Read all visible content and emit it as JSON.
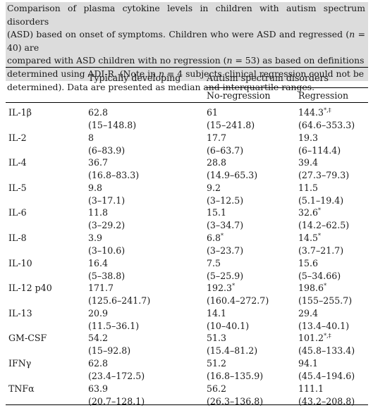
{
  "caption": {
    "line1": "Comparison of plasma cytokine levels in children with autism spectrum disorders",
    "line2": "(ASD) based on onset of symptoms. Children who were ASD and regressed (",
    "line2_var": "n",
    "line2_end": " = 40) are",
    "line3": "compared with ASD children with no regression (",
    "line3_var": "n",
    "line3_end": " = 53) as based on definitions",
    "line4a": "determined using ADI-R. (Note in ",
    "line4_var": "n",
    "line4b": " = 4 subjects clinical regression could not be",
    "line5": "determined). Data are presented as median and interquartile ranges."
  },
  "headers": {
    "typically_developing": "Typically developing",
    "asd": "Autism spectrum disorders",
    "no_regression": "No-regression",
    "regression": "Regression"
  },
  "rows": [
    {
      "label": "IL-1β",
      "td_med": "62.8",
      "td_iqr": "(15–148.8)",
      "nr_med": "61",
      "nr_sup": "",
      "nr_iqr": "(15–241.8)",
      "r_med": "144.3",
      "r_sup": "*,‡",
      "r_iqr": "(64.6–353.3)"
    },
    {
      "label": "IL-2",
      "td_med": "8",
      "td_iqr": "(6–83.9)",
      "nr_med": "17.7",
      "nr_sup": "",
      "nr_iqr": "(6–63.7)",
      "r_med": "19.3",
      "r_sup": "",
      "r_iqr": "(6–114.4)"
    },
    {
      "label": "IL-4",
      "td_med": "36.7",
      "td_iqr": "(16.8–83.3)",
      "nr_med": "28.8",
      "nr_sup": "",
      "nr_iqr": "(14.9–65.3)",
      "r_med": "39.4",
      "r_sup": "",
      "r_iqr": "(27.3–79.3)"
    },
    {
      "label": "IL-5",
      "td_med": "9.8",
      "td_iqr": "(3–17.1)",
      "nr_med": "9.2",
      "nr_sup": "",
      "nr_iqr": "(3–12.5)",
      "r_med": "11.5",
      "r_sup": "",
      "r_iqr": "(5.1–19.4)"
    },
    {
      "label": "IL-6",
      "td_med": "11.8",
      "td_iqr": "(3–29.2)",
      "nr_med": "15.1",
      "nr_sup": "",
      "nr_iqr": "(3–34.7)",
      "r_med": "32.6",
      "r_sup": "*",
      "r_iqr": "(14.2–62.5)"
    },
    {
      "label": "IL-8",
      "td_med": "3.9",
      "td_iqr": "(3–10.6)",
      "nr_med": "6.8",
      "nr_sup": "*",
      "nr_iqr": "(3–23.7)",
      "r_med": "14.5",
      "r_sup": "*",
      "r_iqr": "(3.7–21.7)"
    },
    {
      "label": "IL-10",
      "td_med": "16.4",
      "td_iqr": "(5–38.8)",
      "nr_med": "7.5",
      "nr_sup": "",
      "nr_iqr": "(5–25.9)",
      "r_med": "15.6",
      "r_sup": "",
      "r_iqr": "(5–34.66)"
    },
    {
      "label": "IL-12 p40",
      "td_med": "171.7",
      "td_iqr": "(125.6–241.7)",
      "nr_med": "192.3",
      "nr_sup": "*",
      "nr_iqr": "(160.4–272.7)",
      "r_med": "198.6",
      "r_sup": "*",
      "r_iqr": "(155–255.7)"
    },
    {
      "label": "IL-13",
      "td_med": "20.9",
      "td_iqr": "(11.5–36.1)",
      "nr_med": "14.1",
      "nr_sup": "",
      "nr_iqr": "(10–40.1)",
      "r_med": "29.4",
      "r_sup": "",
      "r_iqr": "(13.4–40.1)"
    },
    {
      "label": "GM-CSF",
      "td_med": "54.2",
      "td_iqr": "(15–92.8)",
      "nr_med": "51.3",
      "nr_sup": "",
      "nr_iqr": "(15.4–81.2)",
      "r_med": "101.2",
      "r_sup": "*,‡",
      "r_iqr": "(45.8–133.4)"
    },
    {
      "label": "IFNγ",
      "td_med": "62.8",
      "td_iqr": "(23.4–172.5)",
      "nr_med": "51.2",
      "nr_sup": "",
      "nr_iqr": "(16.8–135.9)",
      "r_med": "94.1",
      "r_sup": "",
      "r_iqr": "(45.4–194.6)"
    },
    {
      "label": "TNFα",
      "td_med": "63.9",
      "td_iqr": "(20.7–128.1)",
      "nr_med": "56.2",
      "nr_sup": "",
      "nr_iqr": "(26.3–136.8)",
      "r_med": "111.1",
      "r_sup": "",
      "r_iqr": "(43.2–208.8)"
    }
  ]
}
